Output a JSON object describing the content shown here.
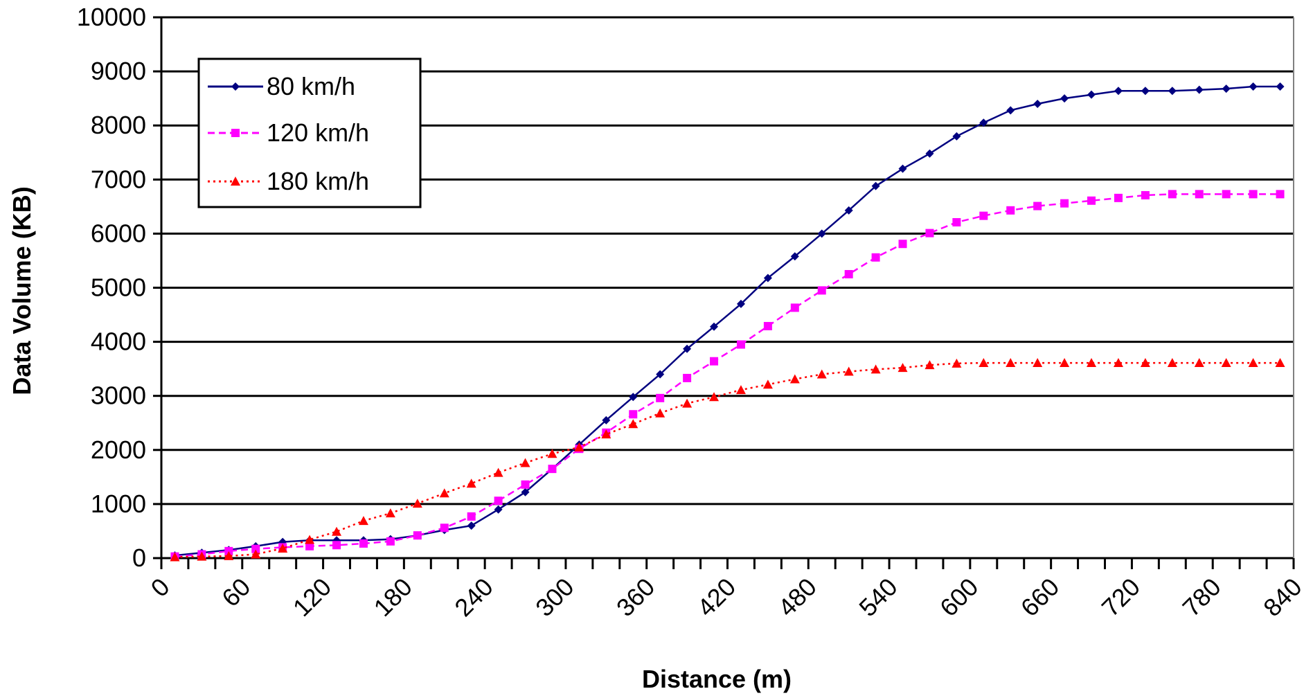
{
  "chart_data": {
    "type": "line",
    "title": "",
    "xlabel": "Distance (m)",
    "ylabel": "Data Volume (KB)",
    "xlim": [
      0,
      840
    ],
    "ylim": [
      0,
      10000
    ],
    "x_ticks": [
      "0",
      "60",
      "120",
      "180",
      "240",
      "300",
      "360",
      "420",
      "480",
      "540",
      "600",
      "660",
      "720",
      "780",
      "840"
    ],
    "y_ticks": [
      "0",
      "1000",
      "2000",
      "3000",
      "4000",
      "5000",
      "6000",
      "7000",
      "8000",
      "9000",
      "10000"
    ],
    "grid": "horizontal",
    "legend_position": "top-left",
    "x": [
      10,
      30,
      50,
      70,
      90,
      110,
      130,
      150,
      170,
      190,
      210,
      230,
      250,
      270,
      290,
      310,
      330,
      350,
      370,
      390,
      410,
      430,
      450,
      470,
      490,
      510,
      530,
      550,
      570,
      590,
      610,
      630,
      650,
      670,
      690,
      710,
      730,
      750,
      770,
      790,
      810,
      830
    ],
    "series": [
      {
        "name": "80 km/h",
        "color": "#000080",
        "line": "solid",
        "marker": "diamond",
        "values": [
          50,
          100,
          150,
          220,
          300,
          330,
          330,
          330,
          350,
          420,
          520,
          600,
          900,
          1220,
          1650,
          2100,
          2550,
          2980,
          3400,
          3870,
          4280,
          4700,
          5180,
          5580,
          6000,
          6430,
          6880,
          7200,
          7480,
          7800,
          8050,
          8280,
          8400,
          8500,
          8570,
          8640,
          8640,
          8640,
          8660,
          8680,
          8720,
          8720
        ]
      },
      {
        "name": "120 km/h",
        "color": "#ff00ff",
        "line": "dashed",
        "marker": "square",
        "values": [
          30,
          70,
          130,
          170,
          200,
          220,
          240,
          270,
          310,
          420,
          560,
          770,
          1060,
          1360,
          1650,
          2020,
          2320,
          2660,
          2960,
          3330,
          3640,
          3950,
          4290,
          4630,
          4950,
          5250,
          5560,
          5810,
          6010,
          6210,
          6330,
          6430,
          6510,
          6560,
          6610,
          6660,
          6710,
          6730,
          6730,
          6730,
          6730,
          6730
        ]
      },
      {
        "name": "180 km/h",
        "color": "#ff0000",
        "line": "dotted",
        "marker": "triangle",
        "values": [
          20,
          30,
          40,
          70,
          180,
          340,
          490,
          690,
          830,
          1010,
          1200,
          1380,
          1580,
          1760,
          1930,
          2050,
          2290,
          2480,
          2680,
          2860,
          2980,
          3110,
          3210,
          3310,
          3400,
          3450,
          3490,
          3520,
          3570,
          3600,
          3610,
          3610,
          3610,
          3610,
          3610,
          3610,
          3610,
          3610,
          3610,
          3610,
          3610,
          3610
        ]
      }
    ]
  }
}
